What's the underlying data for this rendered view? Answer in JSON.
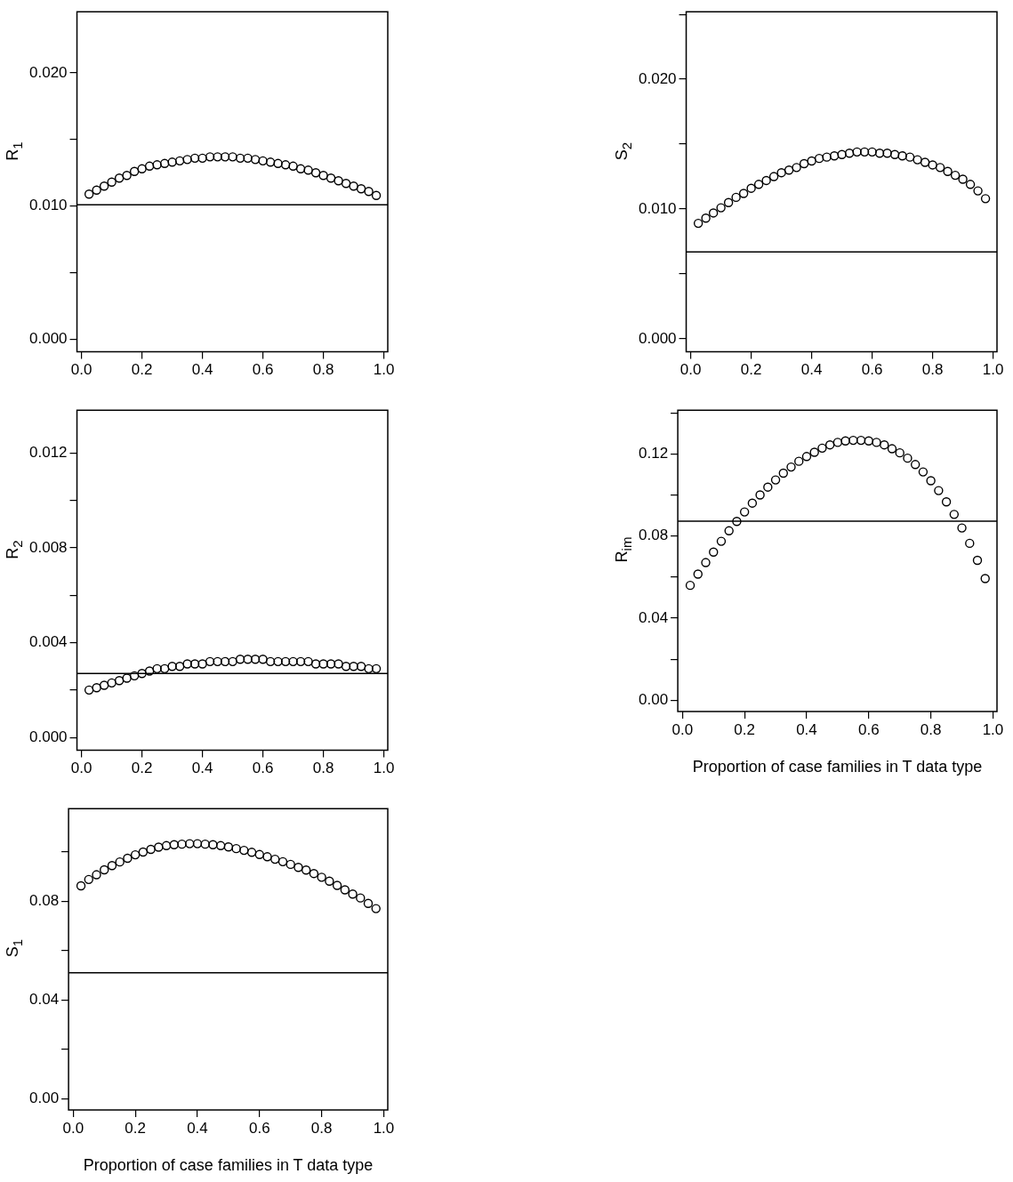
{
  "chart_data": [
    {
      "type": "scatter",
      "ylabel": "R$_{1}$",
      "marker": "circle",
      "grid": false,
      "color": "#000000",
      "x": [
        0.025,
        0.05,
        0.075,
        0.1,
        0.125,
        0.15,
        0.175,
        0.2,
        0.225,
        0.25,
        0.275,
        0.3,
        0.325,
        0.35,
        0.375,
        0.4,
        0.425,
        0.45,
        0.475,
        0.5,
        0.525,
        0.55,
        0.575,
        0.6,
        0.625,
        0.65,
        0.675,
        0.7,
        0.725,
        0.75,
        0.775,
        0.8,
        0.825,
        0.85,
        0.875,
        0.9,
        0.925,
        0.95,
        0.975
      ],
      "values": [
        0.0109,
        0.0112,
        0.0115,
        0.0118,
        0.0121,
        0.0123,
        0.0126,
        0.0128,
        0.013,
        0.0131,
        0.0132,
        0.0133,
        0.0134,
        0.0135,
        0.0136,
        0.0136,
        0.0137,
        0.0137,
        0.0137,
        0.0137,
        0.0136,
        0.0136,
        0.0135,
        0.0134,
        0.0133,
        0.0132,
        0.0131,
        0.013,
        0.0128,
        0.0127,
        0.0125,
        0.0123,
        0.0121,
        0.0119,
        0.0117,
        0.0115,
        0.0113,
        0.0111,
        0.0108
      ],
      "ref_lines": [
        {
          "axis": "y",
          "value": 0.0101,
          "color": "#000000"
        }
      ],
      "xlim": [
        -0.015,
        1.013
      ],
      "xticks": [
        {
          "value": 0,
          "label": "0.0"
        },
        {
          "value": 0.2,
          "label": "0.2"
        },
        {
          "value": 0.4,
          "label": "0.4"
        },
        {
          "value": 0.6,
          "label": "0.6"
        },
        {
          "value": 0.8,
          "label": "0.8"
        },
        {
          "value": 1,
          "label": "1.0"
        }
      ],
      "ylim": [
        -0.00095,
        0.0246
      ],
      "yticks": [
        {
          "value": 0,
          "label": "0.000"
        },
        {
          "value": 0.005,
          "label": null
        },
        {
          "value": 0.01,
          "label": "0.010"
        },
        {
          "value": 0.015,
          "label": null
        },
        {
          "value": 0.02,
          "label": "0.020"
        }
      ]
    },
    {
      "type": "scatter",
      "ylabel": "S$_{2}$",
      "marker": "circle",
      "grid": false,
      "color": "#000000",
      "x": [
        0.025,
        0.05,
        0.075,
        0.1,
        0.125,
        0.15,
        0.175,
        0.2,
        0.225,
        0.25,
        0.275,
        0.3,
        0.325,
        0.35,
        0.375,
        0.4,
        0.425,
        0.45,
        0.475,
        0.5,
        0.525,
        0.55,
        0.575,
        0.6,
        0.625,
        0.65,
        0.675,
        0.7,
        0.725,
        0.75,
        0.775,
        0.8,
        0.825,
        0.85,
        0.875,
        0.9,
        0.925,
        0.95,
        0.975
      ],
      "values": [
        0.0089,
        0.0093,
        0.0097,
        0.0101,
        0.0105,
        0.0109,
        0.0112,
        0.0116,
        0.0119,
        0.0122,
        0.0125,
        0.0128,
        0.013,
        0.0132,
        0.0135,
        0.0137,
        0.0139,
        0.014,
        0.0141,
        0.0142,
        0.0143,
        0.0144,
        0.0144,
        0.0144,
        0.0143,
        0.0143,
        0.0142,
        0.0141,
        0.014,
        0.0138,
        0.0136,
        0.0134,
        0.0132,
        0.0129,
        0.0126,
        0.0123,
        0.0119,
        0.0114,
        0.0108
      ],
      "ref_lines": [
        {
          "axis": "y",
          "value": 0.0067,
          "color": "#000000"
        }
      ],
      "xlim": [
        -0.015,
        1.013
      ],
      "xticks": [
        {
          "value": 0,
          "label": "0.0"
        },
        {
          "value": 0.2,
          "label": "0.2"
        },
        {
          "value": 0.4,
          "label": "0.4"
        },
        {
          "value": 0.6,
          "label": "0.6"
        },
        {
          "value": 0.8,
          "label": "0.8"
        },
        {
          "value": 1,
          "label": "1.0"
        }
      ],
      "ylim": [
        -0.001,
        0.0252
      ],
      "yticks": [
        {
          "value": 0,
          "label": "0.000"
        },
        {
          "value": 0.005,
          "label": null
        },
        {
          "value": 0.01,
          "label": "0.010"
        },
        {
          "value": 0.015,
          "label": null
        },
        {
          "value": 0.02,
          "label": "0.020"
        },
        {
          "value": 0.025,
          "label": null
        }
      ]
    },
    {
      "type": "scatter",
      "ylabel": "R$_{2}$",
      "marker": "circle",
      "grid": false,
      "color": "#000000",
      "x": [
        0.025,
        0.05,
        0.075,
        0.1,
        0.125,
        0.15,
        0.175,
        0.2,
        0.225,
        0.25,
        0.275,
        0.3,
        0.325,
        0.35,
        0.375,
        0.4,
        0.425,
        0.45,
        0.475,
        0.5,
        0.525,
        0.55,
        0.575,
        0.6,
        0.625,
        0.65,
        0.675,
        0.7,
        0.725,
        0.75,
        0.775,
        0.8,
        0.825,
        0.85,
        0.875,
        0.9,
        0.925,
        0.95,
        0.975
      ],
      "values": [
        0.002,
        0.0021,
        0.0022,
        0.0023,
        0.0024,
        0.0025,
        0.0026,
        0.0027,
        0.0028,
        0.0029,
        0.0029,
        0.003,
        0.003,
        0.0031,
        0.0031,
        0.0031,
        0.0032,
        0.0032,
        0.0032,
        0.0032,
        0.0033,
        0.0033,
        0.0033,
        0.0033,
        0.0032,
        0.0032,
        0.0032,
        0.0032,
        0.0032,
        0.0032,
        0.0031,
        0.0031,
        0.0031,
        0.0031,
        0.003,
        0.003,
        0.003,
        0.0029,
        0.0029
      ],
      "ref_lines": [
        {
          "axis": "y",
          "value": 0.0027,
          "color": "#000000"
        }
      ],
      "xlim": [
        -0.015,
        1.013
      ],
      "xticks": [
        {
          "value": 0,
          "label": "0.0"
        },
        {
          "value": 0.2,
          "label": "0.2"
        },
        {
          "value": 0.4,
          "label": "0.4"
        },
        {
          "value": 0.6,
          "label": "0.6"
        },
        {
          "value": 0.8,
          "label": "0.8"
        },
        {
          "value": 1,
          "label": "1.0"
        }
      ],
      "ylim": [
        -0.00054,
        0.0138
      ],
      "yticks": [
        {
          "value": 0,
          "label": "0.000"
        },
        {
          "value": 0.002,
          "label": null
        },
        {
          "value": 0.004,
          "label": "0.004"
        },
        {
          "value": 0.006,
          "label": null
        },
        {
          "value": 0.008,
          "label": "0.008"
        },
        {
          "value": 0.01,
          "label": null
        },
        {
          "value": 0.012,
          "label": "0.012"
        }
      ]
    },
    {
      "type": "scatter",
      "ylabel": "R$_{im}$",
      "xlabel": "Proportion of case families in T data type",
      "marker": "circle",
      "grid": false,
      "color": "#000000",
      "x": [
        0.025,
        0.05,
        0.075,
        0.1,
        0.125,
        0.15,
        0.175,
        0.2,
        0.225,
        0.25,
        0.275,
        0.3,
        0.325,
        0.35,
        0.375,
        0.4,
        0.425,
        0.45,
        0.475,
        0.5,
        0.525,
        0.55,
        0.575,
        0.6,
        0.625,
        0.65,
        0.675,
        0.7,
        0.725,
        0.75,
        0.775,
        0.8,
        0.825,
        0.85,
        0.875,
        0.9,
        0.925,
        0.95,
        0.975
      ],
      "values": [
        0.056,
        0.0615,
        0.0671,
        0.0722,
        0.0775,
        0.0826,
        0.0872,
        0.0918,
        0.0961,
        0.1001,
        0.1039,
        0.1074,
        0.1107,
        0.1137,
        0.1165,
        0.1188,
        0.1209,
        0.1229,
        0.1245,
        0.1257,
        0.1264,
        0.1267,
        0.1267,
        0.1264,
        0.1257,
        0.1245,
        0.1226,
        0.1206,
        0.118,
        0.1149,
        0.1113,
        0.107,
        0.1022,
        0.0967,
        0.0906,
        0.084,
        0.0765,
        0.0682,
        0.0593
      ],
      "ref_lines": [
        {
          "axis": "y",
          "value": 0.0873,
          "color": "#000000"
        }
      ],
      "xlim": [
        -0.015,
        1.013
      ],
      "xticks": [
        {
          "value": 0,
          "label": "0.0"
        },
        {
          "value": 0.2,
          "label": "0.2"
        },
        {
          "value": 0.4,
          "label": "0.4"
        },
        {
          "value": 0.6,
          "label": "0.6"
        },
        {
          "value": 0.8,
          "label": "0.8"
        },
        {
          "value": 1,
          "label": "1.0"
        }
      ],
      "ylim": [
        -0.0055,
        0.1414
      ],
      "yticks": [
        {
          "value": 0,
          "label": "0.00"
        },
        {
          "value": 0.02,
          "label": null
        },
        {
          "value": 0.04,
          "label": "0.04"
        },
        {
          "value": 0.06,
          "label": null
        },
        {
          "value": 0.08,
          "label": "0.08"
        },
        {
          "value": 0.1,
          "label": null
        },
        {
          "value": 0.12,
          "label": "0.12"
        },
        {
          "value": 0.14,
          "label": null
        }
      ]
    },
    {
      "type": "scatter",
      "ylabel": "S$_{1}$",
      "xlabel": "Proportion of case families in T data type",
      "marker": "circle",
      "grid": false,
      "color": "#000000",
      "x": [
        0.025,
        0.05,
        0.075,
        0.1,
        0.125,
        0.15,
        0.175,
        0.2,
        0.225,
        0.25,
        0.275,
        0.3,
        0.325,
        0.35,
        0.375,
        0.4,
        0.425,
        0.45,
        0.475,
        0.5,
        0.525,
        0.55,
        0.575,
        0.6,
        0.625,
        0.65,
        0.675,
        0.7,
        0.725,
        0.75,
        0.775,
        0.8,
        0.825,
        0.85,
        0.875,
        0.9,
        0.925,
        0.95,
        0.975
      ],
      "values": [
        0.0862,
        0.0888,
        0.0907,
        0.0927,
        0.0944,
        0.0959,
        0.0974,
        0.0988,
        0.0999,
        0.101,
        0.1019,
        0.1025,
        0.1029,
        0.1031,
        0.1033,
        0.1033,
        0.1031,
        0.1029,
        0.1025,
        0.102,
        0.1013,
        0.1006,
        0.0998,
        0.0989,
        0.098,
        0.097,
        0.096,
        0.0949,
        0.0937,
        0.0926,
        0.0912,
        0.0897,
        0.0881,
        0.0864,
        0.0846,
        0.0829,
        0.0813,
        0.0791,
        0.077
      ],
      "ref_lines": [
        {
          "axis": "y",
          "value": 0.051,
          "color": "#000000"
        }
      ],
      "xlim": [
        -0.015,
        1.013
      ],
      "xticks": [
        {
          "value": 0,
          "label": "0.0"
        },
        {
          "value": 0.2,
          "label": "0.2"
        },
        {
          "value": 0.4,
          "label": "0.4"
        },
        {
          "value": 0.6,
          "label": "0.6"
        },
        {
          "value": 0.8,
          "label": "0.8"
        },
        {
          "value": 1,
          "label": "1.0"
        }
      ],
      "ylim": [
        -0.0046,
        0.1175
      ],
      "yticks": [
        {
          "value": 0,
          "label": "0.00"
        },
        {
          "value": 0.02,
          "label": null
        },
        {
          "value": 0.04,
          "label": "0.04"
        },
        {
          "value": 0.06,
          "label": null
        },
        {
          "value": 0.08,
          "label": "0.08"
        },
        {
          "value": 0.1,
          "label": null
        }
      ]
    }
  ]
}
